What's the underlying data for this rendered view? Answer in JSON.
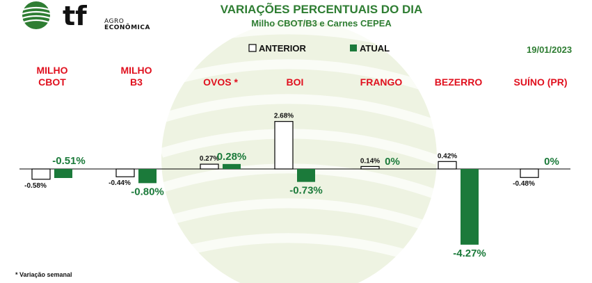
{
  "header": {
    "brand_mark": "tf",
    "brand_line1": "AGRO",
    "brand_line2": "ECONÔMICA",
    "title": "VARIAÇÕES PERCENTUAIS DO DIA",
    "subtitle": "Milho CBOT/B3 e Carnes CEPEA",
    "date": "19/01/2023",
    "footnote": "* Variação semanal"
  },
  "colors": {
    "title": "#2e7d32",
    "category": "#e0101e",
    "anterior_fill": "#ffffff",
    "anterior_stroke": "#000000",
    "atual": "#1b7a3a",
    "atual_label": "#1b7a3a",
    "watermark": "#eef3e2"
  },
  "chart_data": {
    "type": "bar",
    "title": "VARIAÇÕES PERCENTUAIS DO DIA",
    "subtitle": "Milho CBOT/B3 e Carnes CEPEA",
    "categories": [
      [
        "MILHO",
        "CBOT"
      ],
      [
        "MILHO",
        "B3"
      ],
      [
        "OVOS *"
      ],
      [
        "BOI"
      ],
      [
        "FRANGO"
      ],
      [
        "BEZERRO"
      ],
      [
        "SUÍNO (PR)"
      ]
    ],
    "series": [
      {
        "name": "ANTERIOR",
        "values": [
          -0.58,
          -0.44,
          0.27,
          2.68,
          0.14,
          0.42,
          -0.48
        ],
        "labels": [
          "-0.58%",
          "-0.44%",
          "0.27%",
          "2.68%",
          "0.14%",
          "0.42%",
          "-0.48%"
        ]
      },
      {
        "name": "ATUAL",
        "values": [
          -0.51,
          -0.8,
          0.28,
          -0.73,
          0,
          -4.27,
          0
        ],
        "labels": [
          "-0.51%",
          "-0.80%",
          "0.28%",
          "-0.73%",
          "0%",
          "-4.27%",
          "0%"
        ]
      }
    ],
    "legend_position": "top",
    "grid": false,
    "ylim": [
      -4.27,
      2.68
    ]
  }
}
